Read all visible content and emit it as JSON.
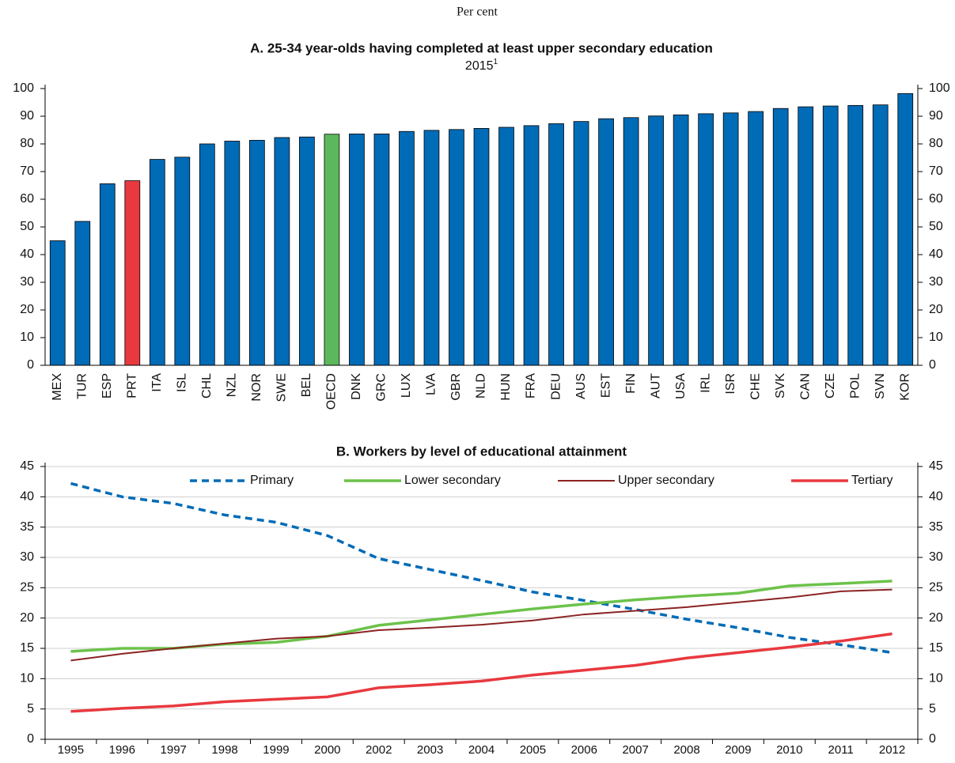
{
  "subtitle": "Per cent",
  "chart_data": [
    {
      "type": "bar",
      "title": "A. 25-34 year-olds having completed at least upper secondary education",
      "subtitle": "2015",
      "subtitle_note": "1",
      "categories": [
        "MEX",
        "TUR",
        "ESP",
        "PRT",
        "ITA",
        "ISL",
        "CHL",
        "NZL",
        "NOR",
        "SWE",
        "BEL",
        "OECD",
        "DNK",
        "GRC",
        "LUX",
        "LVA",
        "GBR",
        "NLD",
        "HUN",
        "FRA",
        "DEU",
        "AUS",
        "EST",
        "FIN",
        "AUT",
        "USA",
        "IRL",
        "ISR",
        "CHE",
        "SVK",
        "CAN",
        "CZE",
        "POL",
        "SVN",
        "KOR"
      ],
      "values": [
        45,
        52,
        65.6,
        66.7,
        74.4,
        75.2,
        80,
        81,
        81.3,
        82.3,
        82.5,
        83.5,
        83.6,
        83.6,
        84.5,
        84.9,
        85.2,
        85.6,
        86,
        86.6,
        87.3,
        88.1,
        89.1,
        89.5,
        90.1,
        90.5,
        90.9,
        91.2,
        91.7,
        92.8,
        93.4,
        93.7,
        93.9,
        94.1,
        98.2
      ],
      "colors": [
        "#006bb6",
        "#006bb6",
        "#006bb6",
        "#e8393f",
        "#006bb6",
        "#006bb6",
        "#006bb6",
        "#006bb6",
        "#006bb6",
        "#006bb6",
        "#006bb6",
        "#5cb85c",
        "#006bb6",
        "#006bb6",
        "#006bb6",
        "#006bb6",
        "#006bb6",
        "#006bb6",
        "#006bb6",
        "#006bb6",
        "#006bb6",
        "#006bb6",
        "#006bb6",
        "#006bb6",
        "#006bb6",
        "#006bb6",
        "#006bb6",
        "#006bb6",
        "#006bb6",
        "#006bb6",
        "#006bb6",
        "#006bb6",
        "#006bb6",
        "#006bb6",
        "#006bb6"
      ],
      "ylim": [
        0,
        100
      ],
      "yticks": [
        0,
        10,
        20,
        30,
        40,
        50,
        60,
        70,
        80,
        90,
        100
      ],
      "grid": false
    },
    {
      "type": "line",
      "title": "B. Workers by level of educational attainment",
      "categories": [
        "1995",
        "1996",
        "1997",
        "1998",
        "1999",
        "2000",
        "2002",
        "2003",
        "2004",
        "2005",
        "2006",
        "2007",
        "2008",
        "2009",
        "2010",
        "2011",
        "2012"
      ],
      "series": [
        {
          "name": "Primary",
          "color": "#006bb6",
          "line_style": "dashed",
          "values": [
            42.2,
            40,
            38.9,
            37,
            35.8,
            33.6,
            29.8,
            28,
            26.2,
            24.3,
            22.9,
            21.4,
            19.8,
            18.4,
            16.8,
            15.6,
            14.3
          ]
        },
        {
          "name": "Lower secondary",
          "color": "#6cc24a",
          "line_style": "solid",
          "values": [
            14.5,
            15,
            15,
            15.7,
            16,
            17,
            18.8,
            19.7,
            20.6,
            21.5,
            22.3,
            23,
            23.6,
            24.1,
            25.3,
            25.7,
            26.1
          ]
        },
        {
          "name": "Upper secondary",
          "color": "#8b2323",
          "line_style": "solid",
          "values": [
            13,
            14.1,
            15,
            15.8,
            16.6,
            17,
            18,
            18.4,
            18.9,
            19.6,
            20.6,
            21.2,
            21.8,
            22.6,
            23.4,
            24.4,
            24.7
          ]
        },
        {
          "name": "Tertiary",
          "color": "#e8393f",
          "line_style": "solid",
          "values": [
            4.6,
            5.1,
            5.5,
            6.2,
            6.6,
            7,
            8.5,
            9,
            9.6,
            10.6,
            11.4,
            12.2,
            13.4,
            14.3,
            15.2,
            16.2,
            17.4
          ]
        }
      ],
      "ylim": [
        0,
        45
      ],
      "yticks": [
        0,
        5,
        10,
        15,
        20,
        25,
        30,
        35,
        40,
        45
      ],
      "grid": true,
      "legend": "top"
    }
  ]
}
